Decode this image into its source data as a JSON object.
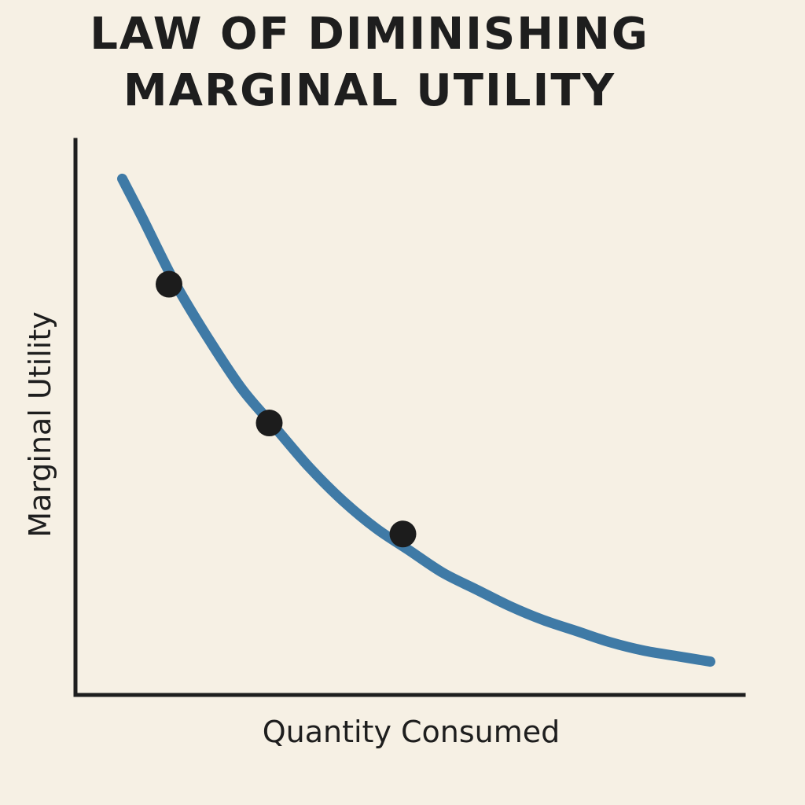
{
  "chart_data": {
    "type": "line",
    "title_lines": [
      "LAW OF DIMINISHING",
      "MARGINAL UTILITY"
    ],
    "xlabel": "Quantity Consumed",
    "ylabel": "Marginal Utility",
    "xlim": [
      0,
      10
    ],
    "ylim": [
      0,
      10
    ],
    "grid": false,
    "ticks_shown": false,
    "series": [
      {
        "name": "Marginal Utility",
        "color": "#3f7aa6",
        "x": [
          0.7,
          1.0,
          1.5,
          2.0,
          2.5,
          3.0,
          3.5,
          4.0,
          4.5,
          5.0,
          5.5,
          6.0,
          6.5,
          7.0,
          7.5,
          8.0,
          8.5,
          9.0,
          9.5
        ],
        "y": [
          9.3,
          8.6,
          7.4,
          6.4,
          5.5,
          4.8,
          4.1,
          3.5,
          3.0,
          2.6,
          2.2,
          1.9,
          1.6,
          1.35,
          1.15,
          0.95,
          0.8,
          0.7,
          0.6
        ]
      }
    ],
    "marked_points": [
      {
        "x": 1.4,
        "y": 7.4
      },
      {
        "x": 2.9,
        "y": 4.9
      },
      {
        "x": 4.9,
        "y": 2.9
      }
    ],
    "point_color": "#1c1c1c",
    "axis_color": "#1e1e1e"
  }
}
